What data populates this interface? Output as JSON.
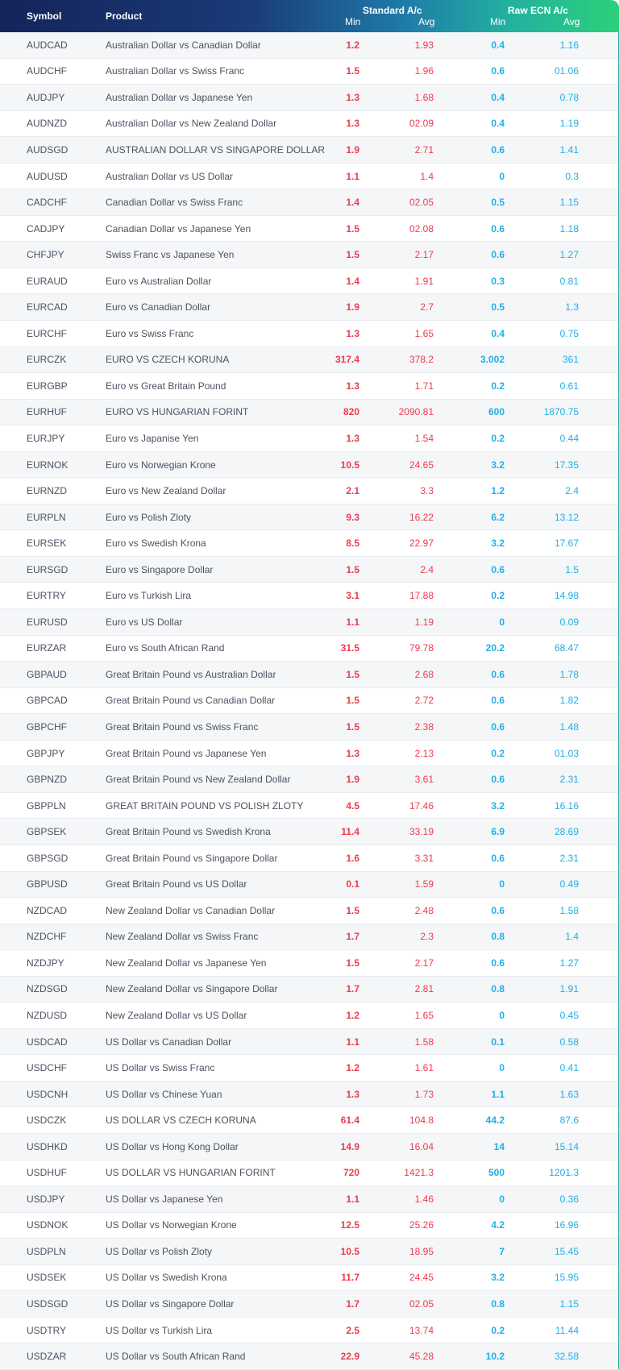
{
  "header": {
    "symbol": "Symbol",
    "product": "Product",
    "standard": "Standard A/c",
    "raw": "Raw ECN A/c",
    "min": "Min",
    "avg": "Avg"
  },
  "colors": {
    "standard": "#ee3b4e",
    "raw": "#22aee4",
    "header_start": "#14245a",
    "header_end": "#2bd07a"
  },
  "rows": [
    {
      "symbol": "AUDCAD",
      "product": "Australian Dollar vs Canadian Dollar",
      "std_min": "1.2",
      "std_avg": "1.93",
      "raw_min": "0.4",
      "raw_avg": "1.16"
    },
    {
      "symbol": "AUDCHF",
      "product": "Australian Dollar vs Swiss Franc",
      "std_min": "1.5",
      "std_avg": "1.96",
      "raw_min": "0.6",
      "raw_avg": "01.06"
    },
    {
      "symbol": "AUDJPY",
      "product": "Australian Dollar vs Japanese Yen",
      "std_min": "1.3",
      "std_avg": "1.68",
      "raw_min": "0.4",
      "raw_avg": "0.78"
    },
    {
      "symbol": "AUDNZD",
      "product": "Australian Dollar vs New Zealand Dollar",
      "std_min": "1.3",
      "std_avg": "02.09",
      "raw_min": "0.4",
      "raw_avg": "1.19"
    },
    {
      "symbol": "AUDSGD",
      "product": "AUSTRALIAN DOLLAR VS SINGAPORE DOLLAR",
      "std_min": "1.9",
      "std_avg": "2.71",
      "raw_min": "0.6",
      "raw_avg": "1.41"
    },
    {
      "symbol": "AUDUSD",
      "product": "Australian Dollar vs US Dollar",
      "std_min": "1.1",
      "std_avg": "1.4",
      "raw_min": "0",
      "raw_avg": "0.3"
    },
    {
      "symbol": "CADCHF",
      "product": "Canadian Dollar vs Swiss Franc",
      "std_min": "1.4",
      "std_avg": "02.05",
      "raw_min": "0.5",
      "raw_avg": "1.15"
    },
    {
      "symbol": "CADJPY",
      "product": "Canadian Dollar vs Japanese Yen",
      "std_min": "1.5",
      "std_avg": "02.08",
      "raw_min": "0.6",
      "raw_avg": "1.18"
    },
    {
      "symbol": "CHFJPY",
      "product": "Swiss Franc vs Japanese Yen",
      "std_min": "1.5",
      "std_avg": "2.17",
      "raw_min": "0.6",
      "raw_avg": "1.27"
    },
    {
      "symbol": "EURAUD",
      "product": "Euro vs Australian Dollar",
      "std_min": "1.4",
      "std_avg": "1.91",
      "raw_min": "0.3",
      "raw_avg": "0.81"
    },
    {
      "symbol": "EURCAD",
      "product": "Euro vs Canadian Dollar",
      "std_min": "1.9",
      "std_avg": "2.7",
      "raw_min": "0.5",
      "raw_avg": "1.3"
    },
    {
      "symbol": "EURCHF",
      "product": "Euro vs Swiss Franc",
      "std_min": "1.3",
      "std_avg": "1.65",
      "raw_min": "0.4",
      "raw_avg": "0.75"
    },
    {
      "symbol": "EURCZK",
      "product": "EURO VS CZECH KORUNA",
      "std_min": "317.4",
      "std_avg": "378.2",
      "raw_min": "3.002",
      "raw_avg": "361"
    },
    {
      "symbol": "EURGBP",
      "product": "Euro vs Great Britain Pound",
      "std_min": "1.3",
      "std_avg": "1.71",
      "raw_min": "0.2",
      "raw_avg": "0.61"
    },
    {
      "symbol": "EURHUF",
      "product": "EURO VS HUNGARIAN FORINT",
      "std_min": "820",
      "std_avg": "2090.81",
      "raw_min": "600",
      "raw_avg": "1870.75"
    },
    {
      "symbol": "EURJPY",
      "product": "Euro vs Japanise Yen",
      "std_min": "1.3",
      "std_avg": "1.54",
      "raw_min": "0.2",
      "raw_avg": "0.44"
    },
    {
      "symbol": "EURNOK",
      "product": "Euro vs Norwegian Krone",
      "std_min": "10.5",
      "std_avg": "24.65",
      "raw_min": "3.2",
      "raw_avg": "17.35"
    },
    {
      "symbol": "EURNZD",
      "product": "Euro vs New Zealand Dollar",
      "std_min": "2.1",
      "std_avg": "3.3",
      "raw_min": "1.2",
      "raw_avg": "2.4"
    },
    {
      "symbol": "EURPLN",
      "product": "Euro vs Polish Zloty",
      "std_min": "9.3",
      "std_avg": "16.22",
      "raw_min": "6.2",
      "raw_avg": "13.12"
    },
    {
      "symbol": "EURSEK",
      "product": "Euro vs Swedish Krona",
      "std_min": "8.5",
      "std_avg": "22.97",
      "raw_min": "3.2",
      "raw_avg": "17.67"
    },
    {
      "symbol": "EURSGD",
      "product": "Euro vs Singapore Dollar",
      "std_min": "1.5",
      "std_avg": "2.4",
      "raw_min": "0.6",
      "raw_avg": "1.5"
    },
    {
      "symbol": "EURTRY",
      "product": "Euro vs Turkish Lira",
      "std_min": "3.1",
      "std_avg": "17.88",
      "raw_min": "0.2",
      "raw_avg": "14.98"
    },
    {
      "symbol": "EURUSD",
      "product": "Euro vs US Dollar",
      "std_min": "1.1",
      "std_avg": "1.19",
      "raw_min": "0",
      "raw_avg": "0.09"
    },
    {
      "symbol": "EURZAR",
      "product": "Euro vs South African Rand",
      "std_min": "31.5",
      "std_avg": "79.78",
      "raw_min": "20.2",
      "raw_avg": "68.47"
    },
    {
      "symbol": "GBPAUD",
      "product": "Great Britain Pound vs Australian Dollar",
      "std_min": "1.5",
      "std_avg": "2.68",
      "raw_min": "0.6",
      "raw_avg": "1.78"
    },
    {
      "symbol": "GBPCAD",
      "product": "Great Britain Pound vs Canadian Dollar",
      "std_min": "1.5",
      "std_avg": "2.72",
      "raw_min": "0.6",
      "raw_avg": "1.82"
    },
    {
      "symbol": "GBPCHF",
      "product": "Great Britain Pound vs Swiss Franc",
      "std_min": "1.5",
      "std_avg": "2.38",
      "raw_min": "0.6",
      "raw_avg": "1.48"
    },
    {
      "symbol": "GBPJPY",
      "product": "Great Britain Pound vs Japanese Yen",
      "std_min": "1.3",
      "std_avg": "2.13",
      "raw_min": "0.2",
      "raw_avg": "01.03"
    },
    {
      "symbol": "GBPNZD",
      "product": "Great Britain Pound vs New Zealand Dollar",
      "std_min": "1.9",
      "std_avg": "3.61",
      "raw_min": "0.6",
      "raw_avg": "2.31"
    },
    {
      "symbol": "GBPPLN",
      "product": "GREAT BRITAIN POUND VS POLISH ZLOTY",
      "std_min": "4.5",
      "std_avg": "17.46",
      "raw_min": "3.2",
      "raw_avg": "16.16"
    },
    {
      "symbol": "GBPSEK",
      "product": "Great Britain Pound vs Swedish Krona",
      "std_min": "11.4",
      "std_avg": "33.19",
      "raw_min": "6.9",
      "raw_avg": "28.69"
    },
    {
      "symbol": "GBPSGD",
      "product": "Great Britain Pound vs Singapore Dollar",
      "std_min": "1.6",
      "std_avg": "3.31",
      "raw_min": "0.6",
      "raw_avg": "2.31"
    },
    {
      "symbol": "GBPUSD",
      "product": "Great Britain Pound vs US Dollar",
      "std_min": "0.1",
      "std_avg": "1.59",
      "raw_min": "0",
      "raw_avg": "0.49"
    },
    {
      "symbol": "NZDCAD",
      "product": "New Zealand Dollar vs Canadian Dollar",
      "std_min": "1.5",
      "std_avg": "2.48",
      "raw_min": "0.6",
      "raw_avg": "1.58"
    },
    {
      "symbol": "NZDCHF",
      "product": "New Zealand Dollar vs Swiss Franc",
      "std_min": "1.7",
      "std_avg": "2.3",
      "raw_min": "0.8",
      "raw_avg": "1.4"
    },
    {
      "symbol": "NZDJPY",
      "product": "New Zealand Dollar vs Japanese Yen",
      "std_min": "1.5",
      "std_avg": "2.17",
      "raw_min": "0.6",
      "raw_avg": "1.27"
    },
    {
      "symbol": "NZDSGD",
      "product": "New Zealand Dollar vs Singapore Dollar",
      "std_min": "1.7",
      "std_avg": "2.81",
      "raw_min": "0.8",
      "raw_avg": "1.91"
    },
    {
      "symbol": "NZDUSD",
      "product": "New Zealand Dollar vs US Dollar",
      "std_min": "1.2",
      "std_avg": "1.65",
      "raw_min": "0",
      "raw_avg": "0.45"
    },
    {
      "symbol": "USDCAD",
      "product": "US Dollar vs Canadian Dollar",
      "std_min": "1.1",
      "std_avg": "1.58",
      "raw_min": "0.1",
      "raw_avg": "0.58"
    },
    {
      "symbol": "USDCHF",
      "product": "US Dollar vs Swiss Franc",
      "std_min": "1.2",
      "std_avg": "1.61",
      "raw_min": "0",
      "raw_avg": "0.41"
    },
    {
      "symbol": "USDCNH",
      "product": "US Dollar vs Chinese Yuan",
      "std_min": "1.3",
      "std_avg": "1.73",
      "raw_min": "1.1",
      "raw_avg": "1.63"
    },
    {
      "symbol": "USDCZK",
      "product": "US DOLLAR VS CZECH KORUNA",
      "std_min": "61.4",
      "std_avg": "104.8",
      "raw_min": "44.2",
      "raw_avg": "87.6"
    },
    {
      "symbol": "USDHKD",
      "product": "US Dollar vs Hong Kong Dollar",
      "std_min": "14.9",
      "std_avg": "16.04",
      "raw_min": "14",
      "raw_avg": "15.14"
    },
    {
      "symbol": "USDHUF",
      "product": "US DOLLAR VS HUNGARIAN FORINT",
      "std_min": "720",
      "std_avg": "1421.3",
      "raw_min": "500",
      "raw_avg": "1201.3"
    },
    {
      "symbol": "USDJPY",
      "product": "US Dollar vs Japanese Yen",
      "std_min": "1.1",
      "std_avg": "1.46",
      "raw_min": "0",
      "raw_avg": "0.36"
    },
    {
      "symbol": "USDNOK",
      "product": "US Dollar vs Norwegian Krone",
      "std_min": "12.5",
      "std_avg": "25.26",
      "raw_min": "4.2",
      "raw_avg": "16.96"
    },
    {
      "symbol": "USDPLN",
      "product": "US Dollar vs Polish Zloty",
      "std_min": "10.5",
      "std_avg": "18.95",
      "raw_min": "7",
      "raw_avg": "15.45"
    },
    {
      "symbol": "USDSEK",
      "product": "US Dollar vs Swedish Krona",
      "std_min": "11.7",
      "std_avg": "24.45",
      "raw_min": "3.2",
      "raw_avg": "15.95"
    },
    {
      "symbol": "USDSGD",
      "product": "US Dollar vs Singapore Dollar",
      "std_min": "1.7",
      "std_avg": "02.05",
      "raw_min": "0.8",
      "raw_avg": "1.15"
    },
    {
      "symbol": "USDTRY",
      "product": "US Dollar vs Turkish Lira",
      "std_min": "2.5",
      "std_avg": "13.74",
      "raw_min": "0.2",
      "raw_avg": "11.44"
    },
    {
      "symbol": "USDZAR",
      "product": "US Dollar vs South African Rand",
      "std_min": "22.9",
      "std_avg": "45.28",
      "raw_min": "10.2",
      "raw_avg": "32.58"
    }
  ]
}
